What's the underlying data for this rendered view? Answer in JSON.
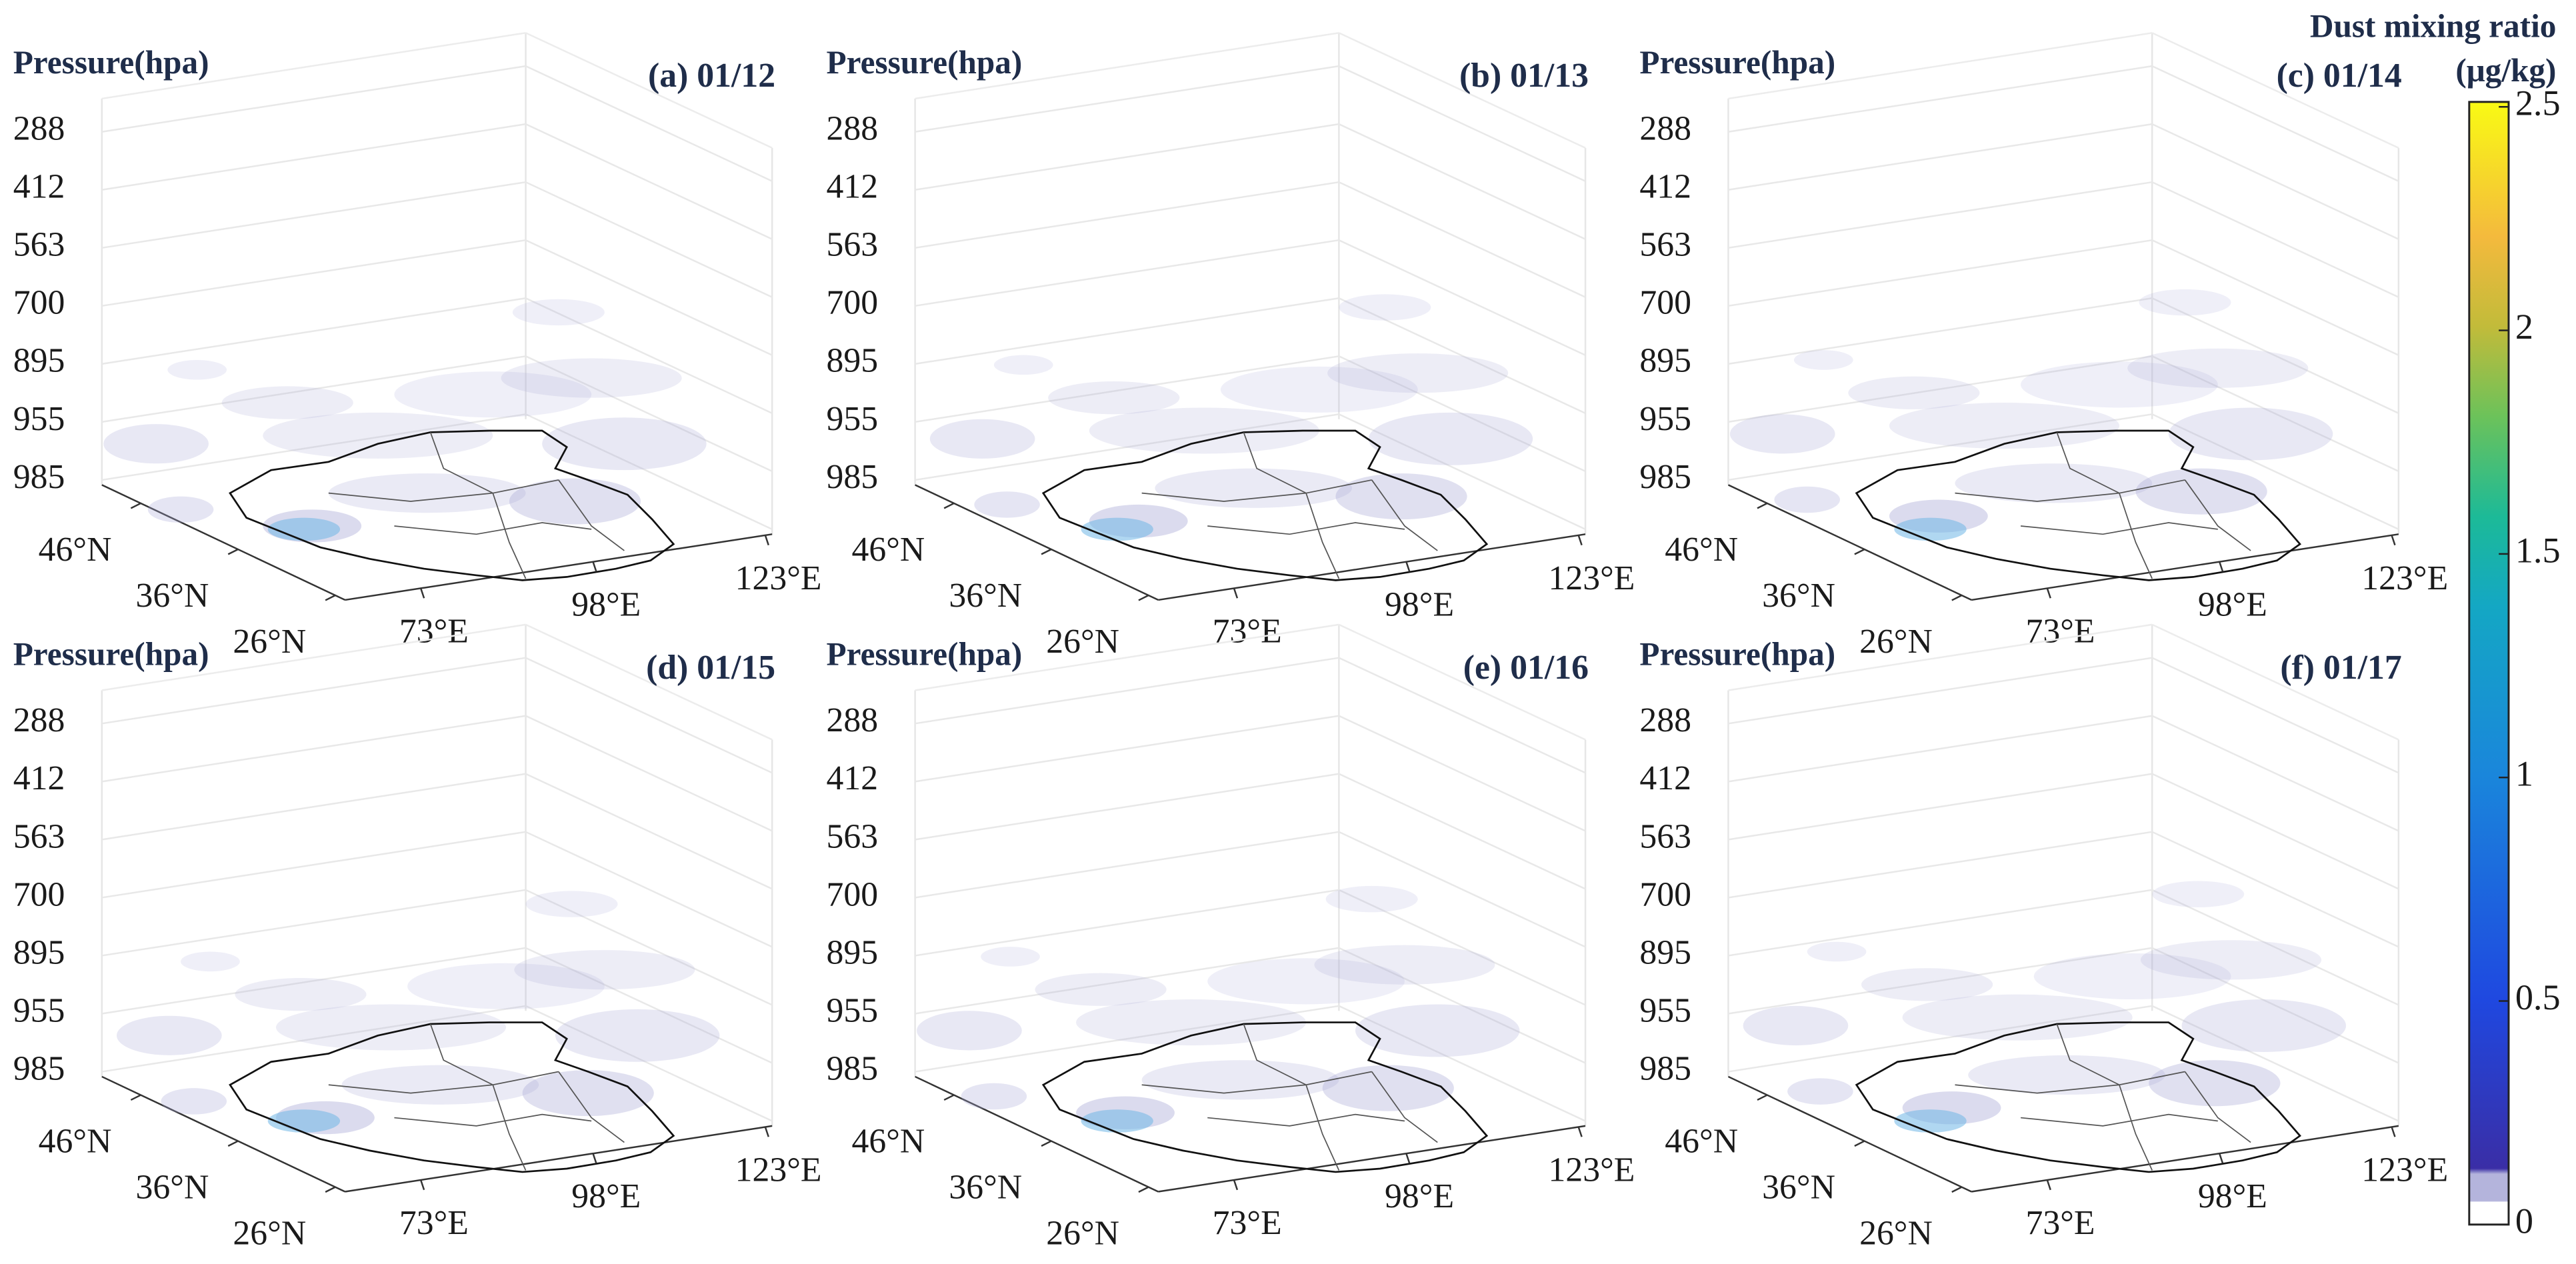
{
  "chart_data": [
    {
      "type": "3d",
      "title": "(a) 01/12",
      "zlabel": "Pressure(hpa)",
      "zlevels": [
        288,
        412,
        563,
        700,
        895,
        955,
        985
      ],
      "ylim": [
        50,
        25
      ],
      "yticks": [
        {
          "value": 46,
          "label": "46°N"
        },
        {
          "value": 36,
          "label": "36°N"
        },
        {
          "value": 26,
          "label": "26°N"
        }
      ],
      "xlim": [
        62,
        124
      ],
      "xticks": [
        {
          "value": 73,
          "label": "73°E"
        },
        {
          "value": 98,
          "label": "98°E"
        },
        {
          "value": 123,
          "label": "123°E"
        }
      ]
    },
    {
      "type": "3d",
      "title": "(b) 01/13",
      "zlabel": "Pressure(hpa)",
      "zlevels": [
        288,
        412,
        563,
        700,
        895,
        955,
        985
      ],
      "ylim": [
        50,
        25
      ],
      "yticks": [
        {
          "value": 46,
          "label": "46°N"
        },
        {
          "value": 36,
          "label": "36°N"
        },
        {
          "value": 26,
          "label": "26°N"
        }
      ],
      "xlim": [
        62,
        124
      ],
      "xticks": [
        {
          "value": 73,
          "label": "73°E"
        },
        {
          "value": 98,
          "label": "98°E"
        },
        {
          "value": 123,
          "label": "123°E"
        }
      ]
    },
    {
      "type": "3d",
      "title": "(c) 01/14",
      "zlabel": "Pressure(hpa)",
      "zlevels": [
        288,
        412,
        563,
        700,
        895,
        955,
        985
      ],
      "ylim": [
        50,
        25
      ],
      "yticks": [
        {
          "value": 46,
          "label": "46°N"
        },
        {
          "value": 36,
          "label": "36°N"
        },
        {
          "value": 26,
          "label": "26°N"
        }
      ],
      "xlim": [
        62,
        124
      ],
      "xticks": [
        {
          "value": 73,
          "label": "73°E"
        },
        {
          "value": 98,
          "label": "98°E"
        },
        {
          "value": 123,
          "label": "123°E"
        }
      ]
    },
    {
      "type": "3d",
      "title": "(d) 01/15",
      "zlabel": "Pressure(hpa)",
      "zlevels": [
        288,
        412,
        563,
        700,
        895,
        955,
        985
      ],
      "ylim": [
        50,
        25
      ],
      "yticks": [
        {
          "value": 46,
          "label": "46°N"
        },
        {
          "value": 36,
          "label": "36°N"
        },
        {
          "value": 26,
          "label": "26°N"
        }
      ],
      "xlim": [
        62,
        124
      ],
      "xticks": [
        {
          "value": 73,
          "label": "73°E"
        },
        {
          "value": 98,
          "label": "98°E"
        },
        {
          "value": 123,
          "label": "123°E"
        }
      ]
    },
    {
      "type": "3d",
      "title": "(e) 01/16",
      "zlabel": "Pressure(hpa)",
      "zlevels": [
        288,
        412,
        563,
        700,
        895,
        955,
        985
      ],
      "ylim": [
        50,
        25
      ],
      "yticks": [
        {
          "value": 46,
          "label": "46°N"
        },
        {
          "value": 36,
          "label": "36°N"
        },
        {
          "value": 26,
          "label": "26°N"
        }
      ],
      "xlim": [
        62,
        124
      ],
      "xticks": [
        {
          "value": 73,
          "label": "73°E"
        },
        {
          "value": 98,
          "label": "98°E"
        },
        {
          "value": 123,
          "label": "123°E"
        }
      ]
    },
    {
      "type": "3d",
      "title": "(f) 01/17",
      "zlabel": "Pressure(hpa)",
      "zlevels": [
        288,
        412,
        563,
        700,
        895,
        955,
        985
      ],
      "ylim": [
        50,
        25
      ],
      "yticks": [
        {
          "value": 46,
          "label": "46°N"
        },
        {
          "value": 36,
          "label": "36°N"
        },
        {
          "value": 26,
          "label": "26°N"
        }
      ],
      "xlim": [
        62,
        124
      ],
      "xticks": [
        {
          "value": 73,
          "label": "73°E"
        },
        {
          "value": 98,
          "label": "98°E"
        },
        {
          "value": 123,
          "label": "123°E"
        }
      ]
    }
  ],
  "colorbar": {
    "title": "Dust mixing ratio",
    "unit": "(μg/kg)",
    "lim": [
      0,
      2.5
    ],
    "ticks": [
      0,
      0.5,
      1,
      1.5,
      2,
      2.5
    ]
  }
}
